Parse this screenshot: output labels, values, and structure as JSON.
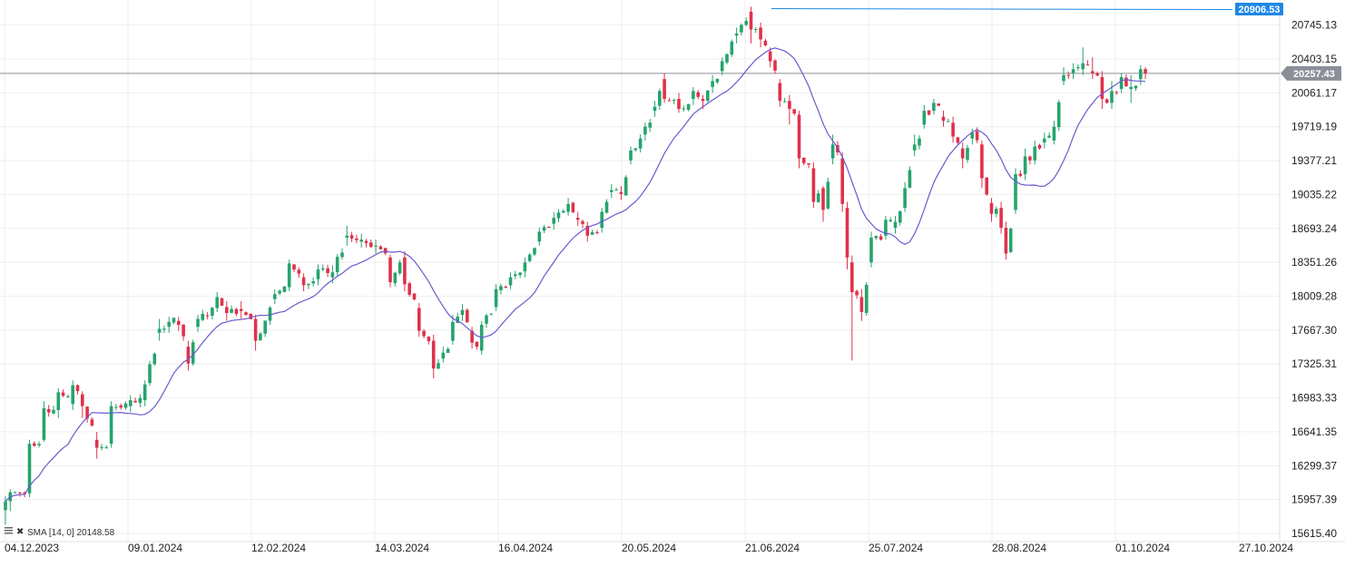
{
  "chart_data": {
    "type": "candlestick",
    "y_ticks": [
      "20745.13",
      "20403.15",
      "20061.17",
      "19719.19",
      "19377.21",
      "19035.22",
      "18693.24",
      "18351.26",
      "18009.28",
      "17667.30",
      "17325.31",
      "16983.33",
      "16641.35",
      "16299.37",
      "15957.39",
      "15615.40"
    ],
    "x_ticks": [
      "04.12.2023",
      "09.01.2024",
      "12.02.2024",
      "14.03.2024",
      "16.04.2024",
      "20.05.2024",
      "21.06.2024",
      "25.07.2024",
      "28.08.2024",
      "01.10.2024",
      "27.10.2024"
    ],
    "ylim": [
      15615.4,
      20906.53
    ],
    "current_price": "20257.43",
    "high_line": "20906.53",
    "indicator_label": "SMA [14, 0] 20148.58",
    "indicator": {
      "name": "SMA",
      "period": 14,
      "value": 20148.58
    },
    "grid": true,
    "up_color": "#26a36e",
    "down_color": "#e0314b",
    "sma_color": "#6a5acd",
    "price_line_color": "#8a8f98",
    "price_badge_color": "#8a8f98",
    "high_line_color": "#1e88e5",
    "grid_color": "#eeeeee",
    "anchors": [
      [
        0,
        15850,
        15940,
        15705,
        15990
      ],
      [
        1,
        15940,
        16030,
        15840,
        16060
      ],
      [
        5,
        16020,
        16520,
        15980,
        16560
      ],
      [
        8,
        16560,
        16880,
        16540,
        16950
      ],
      [
        11,
        16860,
        17040,
        16780,
        17080
      ],
      [
        14,
        16920,
        17110,
        16860,
        17160
      ],
      [
        16,
        17020,
        16900,
        16780,
        17050
      ],
      [
        19,
        16560,
        16480,
        16370,
        16640
      ],
      [
        22,
        16520,
        16900,
        16480,
        16950
      ],
      [
        26,
        16900,
        16960,
        16840,
        17010
      ],
      [
        29,
        16960,
        17120,
        16900,
        17160
      ],
      [
        32,
        17640,
        17680,
        17560,
        17780
      ],
      [
        34,
        17700,
        17750,
        17640,
        17800
      ],
      [
        36,
        17760,
        17720,
        17660,
        17800
      ],
      [
        38,
        17500,
        17330,
        17260,
        17560
      ],
      [
        40,
        17700,
        17780,
        17650,
        17820
      ],
      [
        44,
        17890,
        18000,
        17850,
        18050
      ],
      [
        46,
        17900,
        17840,
        17760,
        17960
      ],
      [
        49,
        17880,
        17860,
        17780,
        17960
      ],
      [
        52,
        17780,
        17560,
        17460,
        17820
      ],
      [
        56,
        17980,
        18030,
        17930,
        18080
      ],
      [
        59,
        18100,
        18340,
        18060,
        18380
      ],
      [
        62,
        18200,
        18120,
        18060,
        18240
      ],
      [
        65,
        18180,
        18280,
        18120,
        18330
      ],
      [
        68,
        18200,
        18250,
        18140,
        18320
      ],
      [
        71,
        18600,
        18620,
        18520,
        18720
      ],
      [
        74,
        18560,
        18580,
        18500,
        18640
      ],
      [
        77,
        18510,
        18520,
        18440,
        18580
      ],
      [
        80,
        18400,
        18150,
        18100,
        18430
      ],
      [
        83,
        18400,
        18130,
        18060,
        18460
      ],
      [
        86,
        17890,
        17660,
        17600,
        17940
      ],
      [
        89,
        17560,
        17280,
        17180,
        17620
      ],
      [
        91,
        17380,
        17440,
        17340,
        17500
      ],
      [
        93,
        17560,
        17750,
        17520,
        17820
      ],
      [
        95,
        17820,
        17870,
        17760,
        17930
      ],
      [
        97,
        17660,
        17540,
        17480,
        17700
      ],
      [
        99,
        17460,
        17720,
        17420,
        17760
      ],
      [
        102,
        17900,
        18080,
        17860,
        18130
      ],
      [
        105,
        18120,
        18200,
        18080,
        18250
      ],
      [
        108,
        18260,
        18350,
        18200,
        18400
      ],
      [
        111,
        18560,
        18660,
        18520,
        18700
      ],
      [
        114,
        18740,
        18800,
        18680,
        18860
      ],
      [
        117,
        18860,
        18940,
        18820,
        19000
      ],
      [
        119,
        18800,
        18780,
        18720,
        18860
      ],
      [
        121,
        18720,
        18620,
        18560,
        18760
      ],
      [
        124,
        18700,
        18860,
        18650,
        18900
      ],
      [
        126,
        19060,
        19080,
        19000,
        19140
      ],
      [
        128,
        19060,
        19040,
        18980,
        19120
      ],
      [
        130,
        19380,
        19480,
        19340,
        19520
      ],
      [
        133,
        19640,
        19720,
        19580,
        19760
      ],
      [
        135,
        19880,
        19920,
        19820,
        19980
      ],
      [
        137,
        20200,
        20000,
        19960,
        20260
      ],
      [
        140,
        20000,
        19900,
        19860,
        20060
      ],
      [
        143,
        20000,
        20080,
        19940,
        20120
      ],
      [
        145,
        20000,
        19980,
        19900,
        20040
      ],
      [
        147,
        20120,
        20180,
        20060,
        20240
      ],
      [
        149,
        20280,
        20380,
        20240,
        20420
      ],
      [
        152,
        20640,
        20660,
        20560,
        20720
      ],
      [
        155,
        20880,
        20700,
        20560,
        20930
      ],
      [
        157,
        20720,
        20600,
        20520,
        20770
      ],
      [
        159,
        20480,
        20380,
        20320,
        20520
      ],
      [
        161,
        20160,
        19980,
        19920,
        20200
      ],
      [
        163,
        19980,
        19900,
        19740,
        20040
      ],
      [
        165,
        19840,
        19400,
        19300,
        19880
      ],
      [
        168,
        19300,
        18960,
        18900,
        19360
      ],
      [
        170,
        19100,
        18880,
        18760,
        19120
      ],
      [
        172,
        19400,
        19540,
        19340,
        19640
      ],
      [
        174,
        19400,
        18940,
        18860,
        19460
      ],
      [
        175,
        18900,
        18400,
        18280,
        18960
      ],
      [
        176,
        18350,
        18050,
        17360,
        18420
      ],
      [
        178,
        18000,
        17850,
        17760,
        18080
      ],
      [
        180,
        18350,
        18600,
        18300,
        18660
      ],
      [
        183,
        18620,
        18780,
        18580,
        18820
      ],
      [
        185,
        18700,
        18760,
        18640,
        18820
      ],
      [
        187,
        18900,
        19100,
        18860,
        19160
      ],
      [
        189,
        19480,
        19540,
        19420,
        19640
      ],
      [
        191,
        19740,
        19880,
        19700,
        19940
      ],
      [
        193,
        19880,
        19960,
        19840,
        20000
      ],
      [
        195,
        19820,
        19780,
        19720,
        19880
      ],
      [
        197,
        19760,
        19620,
        19560,
        19820
      ],
      [
        199,
        19500,
        19400,
        19300,
        19560
      ],
      [
        201,
        19600,
        19660,
        19540,
        19700
      ],
      [
        203,
        19540,
        19200,
        19100,
        19580
      ],
      [
        205,
        18950,
        18840,
        18760,
        19000
      ],
      [
        207,
        18900,
        18700,
        18640,
        18960
      ],
      [
        208,
        18700,
        18440,
        18380,
        18760
      ],
      [
        210,
        18880,
        19240,
        18840,
        19300
      ],
      [
        212,
        19240,
        19420,
        19180,
        19500
      ],
      [
        214,
        19380,
        19520,
        19340,
        19580
      ],
      [
        216,
        19560,
        19600,
        19500,
        19660
      ],
      [
        218,
        19580,
        19720,
        19540,
        19780
      ],
      [
        220,
        20180,
        20240,
        20140,
        20320
      ],
      [
        222,
        20260,
        20300,
        20200,
        20360
      ],
      [
        224,
        20300,
        20360,
        20240,
        20520
      ],
      [
        226,
        20280,
        20260,
        20200,
        20420
      ],
      [
        228,
        20220,
        20000,
        19900,
        20280
      ],
      [
        230,
        19960,
        20080,
        19900,
        20180
      ],
      [
        232,
        20100,
        20220,
        20060,
        20260
      ],
      [
        234,
        20100,
        20120,
        19960,
        20240
      ],
      [
        236,
        20200,
        20300,
        20140,
        20340
      ],
      [
        237,
        20300,
        20257.43,
        20200,
        20320
      ]
    ]
  }
}
